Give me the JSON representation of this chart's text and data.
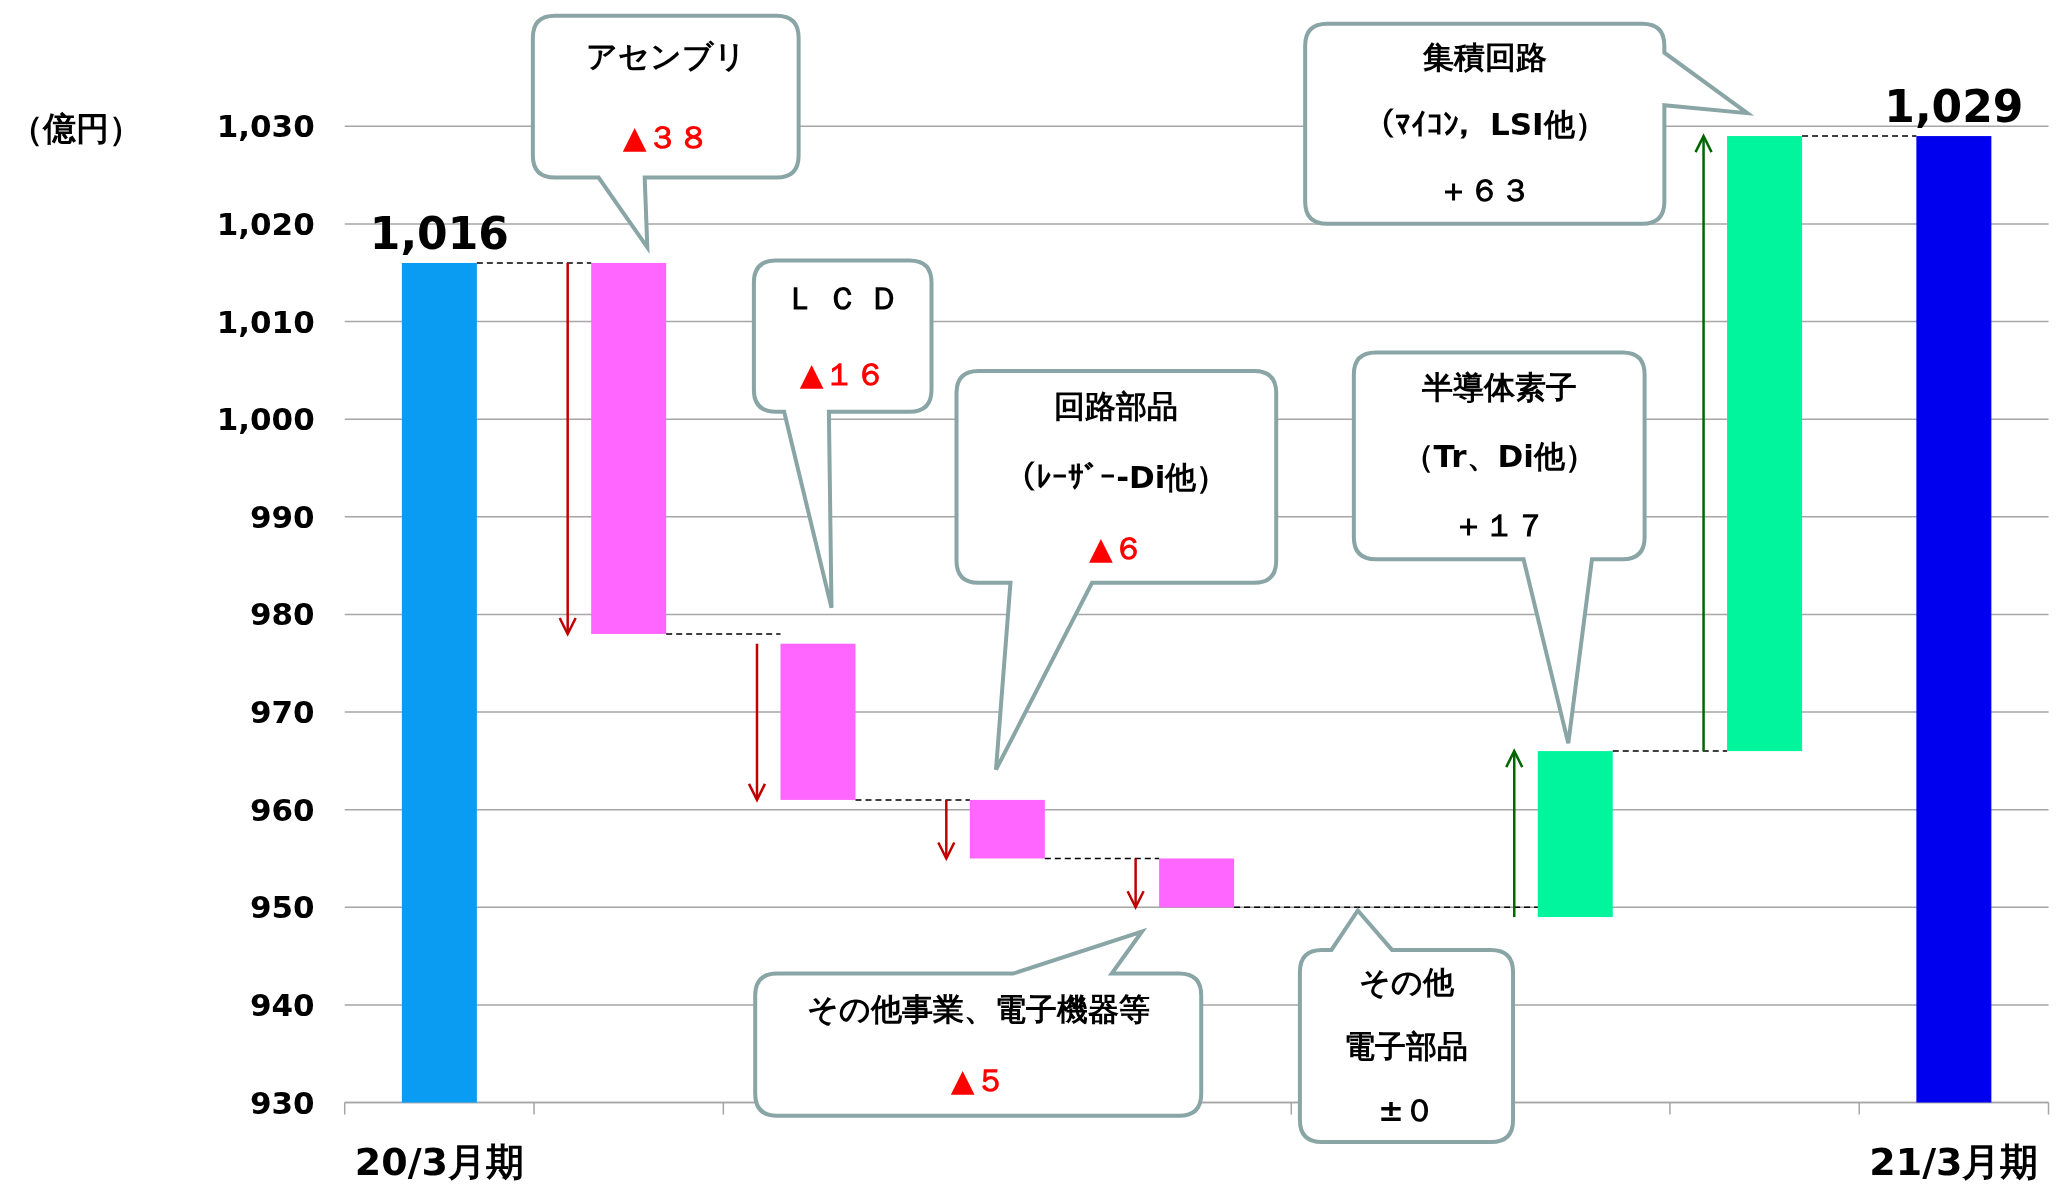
{
  "chart_data": {
    "type": "bar",
    "ylabel": "（億円）",
    "categories": [
      "20/3月期",
      null,
      null,
      null,
      null,
      null,
      null,
      null,
      "21/3月期"
    ],
    "base": [
      null,
      1016,
      977,
      961,
      955,
      null,
      949,
      966,
      null
    ],
    "values": [
      1016,
      -38,
      -16,
      -6,
      -5,
      null,
      17,
      63,
      1029
    ],
    "colors": [
      "#0a9cf2",
      "#ff66ff",
      "#ff66ff",
      "#ff66ff",
      "#ff66ff",
      null,
      "#00f59c",
      "#00f59c",
      "#0000ee"
    ],
    "value_labels": [
      "1,016",
      null,
      null,
      null,
      null,
      null,
      null,
      null,
      "1,029"
    ],
    "annotations": [
      "アセンブリ",
      "▲３８",
      "Ｌ Ｃ Ｄ",
      "▲１６",
      "回路部品",
      "（ﾚｰｻﾞｰ-Di他）",
      "▲６",
      "その他事業、電子機器等",
      "▲５",
      "その他",
      "電子部品",
      "±０",
      "半導体素子",
      "（Tr、Di他）",
      "＋１７",
      "集積回路",
      "（ﾏｲｺﾝ，LSI他）",
      "＋６３"
    ],
    "ylim": [
      930,
      1030
    ],
    "yticks": [
      {
        "value": 930,
        "label": "930"
      },
      {
        "value": 940,
        "label": "940"
      },
      {
        "value": 950,
        "label": "950"
      },
      {
        "value": 960,
        "label": "960"
      },
      {
        "value": 970,
        "label": "970"
      },
      {
        "value": 980,
        "label": "980"
      },
      {
        "value": 990,
        "label": "990"
      },
      {
        "value": 1000,
        "label": "1,000"
      },
      {
        "value": 1010,
        "label": "1,010"
      },
      {
        "value": 1020,
        "label": "1,020"
      },
      {
        "value": 1030,
        "label": "1,030"
      }
    ],
    "grid": "y"
  }
}
